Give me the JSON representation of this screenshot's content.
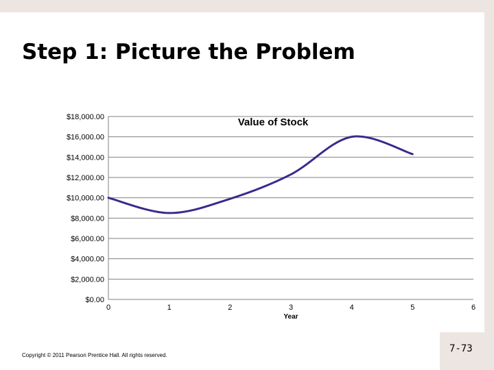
{
  "slide": {
    "title": "Step 1: Picture the Problem",
    "copyright": "Copyright © 2011 Pearson Prentice Hall. All rights reserved.",
    "page_number": "7-73"
  },
  "colors": {
    "line": "#3a2a8c",
    "gridline": "#808080",
    "background_border": "#ede5e1"
  },
  "chart_data": {
    "type": "line",
    "title": "Value of Stock",
    "xlabel": "Year",
    "ylabel": "",
    "x_ticks": [
      "0",
      "1",
      "2",
      "3",
      "4",
      "5",
      "6"
    ],
    "y_ticks": [
      "$0.00",
      "$2,000.00",
      "$4,000.00",
      "$6,000.00",
      "$8,000.00",
      "$10,000.00",
      "$12,000.00",
      "$14,000.00",
      "$16,000.00",
      "$18,000.00"
    ],
    "xlim": [
      0,
      6
    ],
    "ylim": [
      0,
      18000
    ],
    "grid": true,
    "series": [
      {
        "x": [
          0,
          1,
          2,
          3,
          4,
          5
        ],
        "values": [
          10000,
          8500,
          9900,
          12300,
          16000,
          14300
        ]
      }
    ]
  }
}
